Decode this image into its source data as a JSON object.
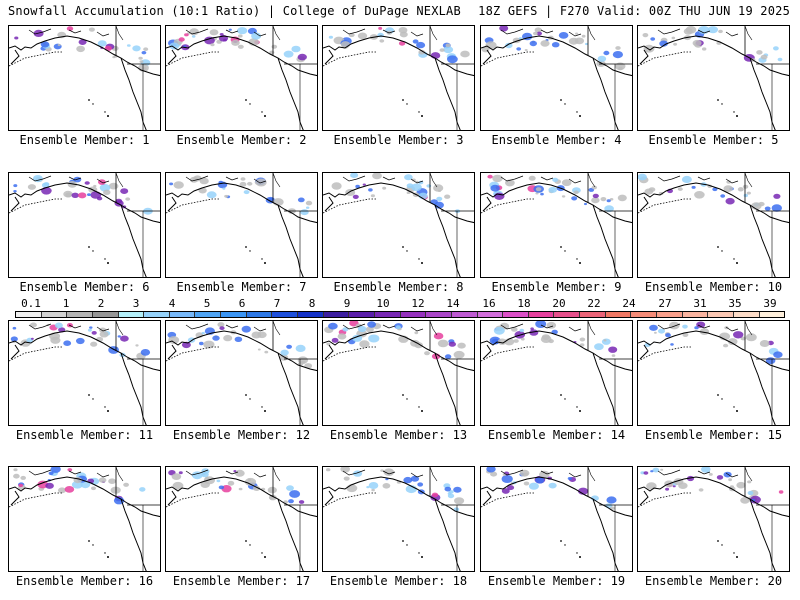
{
  "header": {
    "title": "Snowfall Accumulation (10:1 Ratio) | College of DuPage NEXLAB",
    "run_info": "18Z GEFS | F270 Valid: 00Z THU JUN 19 2025"
  },
  "legend": {
    "ticks": [
      "0.1",
      "1",
      "2",
      "3",
      "4",
      "5",
      "6",
      "7",
      "8",
      "9",
      "10",
      "12",
      "14",
      "16",
      "18",
      "20",
      "22",
      "24",
      "27",
      "31",
      "35",
      "39"
    ],
    "colors": [
      "#f0f0f0",
      "#d2d2d2",
      "#b4b4b4",
      "#969696",
      "#b4f0fa",
      "#96d2fa",
      "#78b9fa",
      "#50a5f5",
      "#3c96f5",
      "#2d78e6",
      "#1e50dc",
      "#1432c8",
      "#3c1ea0",
      "#5a1eaa",
      "#7828b4",
      "#9632be",
      "#aa46c8",
      "#be5ad2",
      "#d26edc",
      "#dc50c8",
      "#e6409e",
      "#e6508c",
      "#eb6478",
      "#f07864",
      "#f58c78",
      "#faa08c",
      "#fab4a0",
      "#fcc8b4",
      "#fddcc8",
      "#fff0dc"
    ]
  },
  "panel_label_prefix": "Ensemble Member:",
  "members": [
    {
      "label": "Ensemble Member: 1",
      "intensity": 0.7
    },
    {
      "label": "Ensemble Member: 2",
      "intensity": 1.0
    },
    {
      "label": "Ensemble Member: 3",
      "intensity": 0.6
    },
    {
      "label": "Ensemble Member: 4",
      "intensity": 0.8
    },
    {
      "label": "Ensemble Member: 5",
      "intensity": 0.5
    },
    {
      "label": "Ensemble Member: 6",
      "intensity": 0.7
    },
    {
      "label": "Ensemble Member: 7",
      "intensity": 0.5
    },
    {
      "label": "Ensemble Member: 8",
      "intensity": 0.7
    },
    {
      "label": "Ensemble Member: 9",
      "intensity": 1.0
    },
    {
      "label": "Ensemble Member: 10",
      "intensity": 0.6
    },
    {
      "label": "Ensemble Member: 11",
      "intensity": 0.8
    },
    {
      "label": "Ensemble Member: 12",
      "intensity": 0.6
    },
    {
      "label": "Ensemble Member: 13",
      "intensity": 0.9
    },
    {
      "label": "Ensemble Member: 14",
      "intensity": 0.6
    },
    {
      "label": "Ensemble Member: 15",
      "intensity": 0.4
    },
    {
      "label": "Ensemble Member: 16",
      "intensity": 0.8
    },
    {
      "label": "Ensemble Member: 17",
      "intensity": 0.7
    },
    {
      "label": "Ensemble Member: 18",
      "intensity": 0.6
    },
    {
      "label": "Ensemble Member: 19",
      "intensity": 0.5
    },
    {
      "label": "Ensemble Member: 20",
      "intensity": 0.7
    }
  ]
}
